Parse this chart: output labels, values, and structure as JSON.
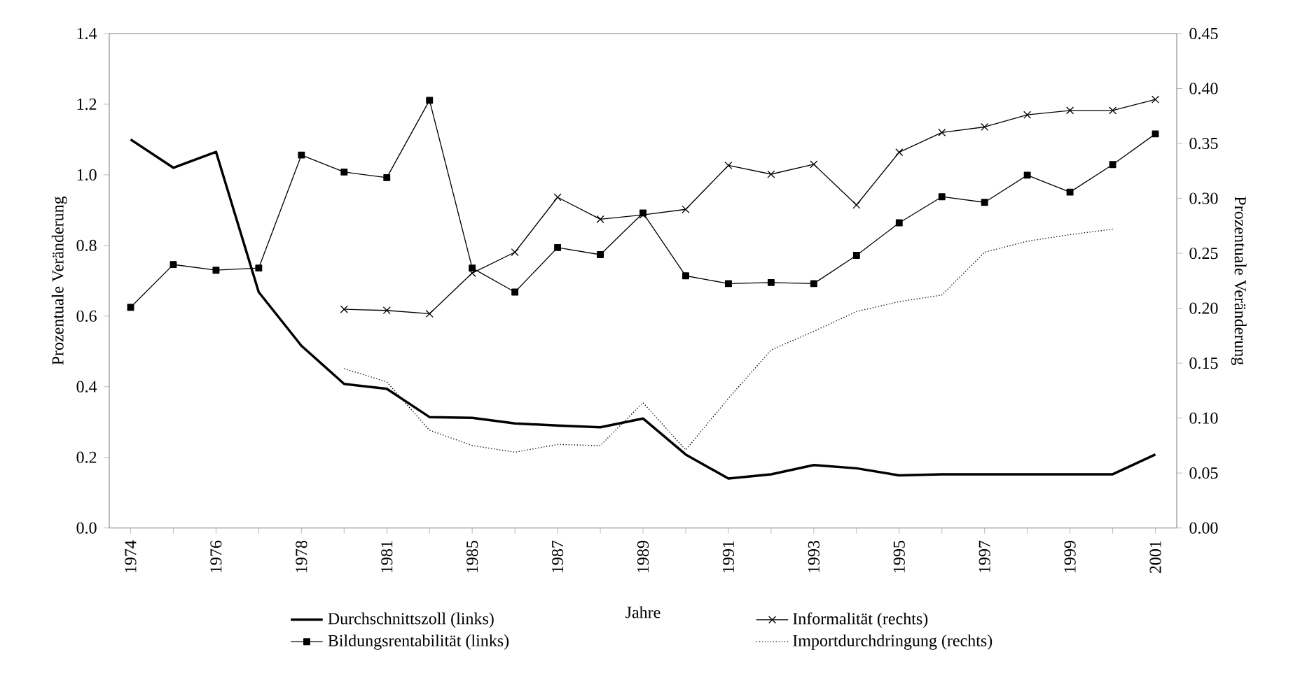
{
  "chart_data": {
    "type": "line",
    "xlabel": "Jahre",
    "ylabel": "Prozentuale Veränderung",
    "y2label": "Prozentuale Veränderung",
    "categories": [
      "1974",
      null,
      "1976",
      null,
      "1978",
      null,
      "1981",
      null,
      "1985",
      null,
      "1987",
      null,
      "1989",
      null,
      "1991",
      null,
      "1993",
      null,
      "1995",
      null,
      "1997",
      null,
      "1999",
      null,
      "2001"
    ],
    "ylim": [
      0,
      1.4
    ],
    "yticks": [
      {
        "value": 0,
        "label": "0.0"
      },
      {
        "value": 0.2,
        "label": "0.2"
      },
      {
        "value": 0.4,
        "label": "0.4"
      },
      {
        "value": 0.6,
        "label": "0.6"
      },
      {
        "value": 0.8,
        "label": "0.8"
      },
      {
        "value": 1.0,
        "label": "1.0"
      },
      {
        "value": 1.2,
        "label": "1.2"
      },
      {
        "value": 1.4,
        "label": "1.4"
      }
    ],
    "y2lim": [
      0,
      0.45
    ],
    "y2ticks": [
      {
        "value": 0,
        "label": "0.00"
      },
      {
        "value": 0.05,
        "label": "0.05"
      },
      {
        "value": 0.1,
        "label": "0.10"
      },
      {
        "value": 0.15,
        "label": "0.15"
      },
      {
        "value": 0.2,
        "label": "0.20"
      },
      {
        "value": 0.25,
        "label": "0.25"
      },
      {
        "value": 0.3,
        "label": "0.30"
      },
      {
        "value": 0.35,
        "label": "0.35"
      },
      {
        "value": 0.4,
        "label": "0.40"
      },
      {
        "value": 0.45,
        "label": "0.45"
      }
    ],
    "legend": "bottom",
    "grid": false,
    "series": [
      {
        "name": "Durchschnittszoll (links)",
        "color": "#000000",
        "marker": "none",
        "line_style": "solid",
        "values": [
          1.1,
          1.02,
          1.065,
          0.668,
          0.516,
          0.408,
          0.394,
          0.314,
          0.312,
          0.296,
          0.29,
          0.285,
          0.31,
          0.208,
          0.14,
          0.152,
          0.178,
          0.169,
          0.149,
          0.152,
          0.152,
          0.152,
          0.152,
          0.152,
          0.208
        ]
      },
      {
        "name": "Informalität (rechts)",
        "color": "#000000",
        "marker": "cross",
        "line_style": "solid",
        "axis": "y2",
        "values": [
          null,
          null,
          null,
          null,
          null,
          0.199,
          0.198,
          0.195,
          0.232,
          0.251,
          0.301,
          0.281,
          0.285,
          0.29,
          0.33,
          0.322,
          0.331,
          0.294,
          0.342,
          0.36,
          0.365,
          0.376,
          0.38,
          0.38,
          0.39
        ]
      },
      {
        "name": "Bildungsrentabilität (links)",
        "color": "#000000",
        "marker": "square",
        "line_style": "solid",
        "values": [
          0.625,
          0.746,
          0.73,
          0.736,
          1.056,
          1.008,
          0.992,
          1.211,
          0.736,
          0.668,
          0.794,
          0.774,
          0.892,
          0.714,
          0.692,
          0.695,
          0.692,
          0.772,
          0.864,
          0.938,
          0.922,
          0.999,
          0.951,
          1.029,
          1.116
        ]
      },
      {
        "name": "Importdurchdringung (rechts)",
        "color": "#000000",
        "marker": "none",
        "line_style": "dotted",
        "axis": "y2",
        "values": [
          null,
          null,
          null,
          null,
          null,
          0.145,
          0.133,
          0.089,
          0.075,
          0.069,
          0.076,
          0.075,
          0.114,
          0.071,
          0.118,
          0.162,
          0.179,
          0.197,
          0.206,
          0.212,
          0.251,
          0.261,
          0.267,
          0.272,
          null
        ]
      }
    ]
  }
}
